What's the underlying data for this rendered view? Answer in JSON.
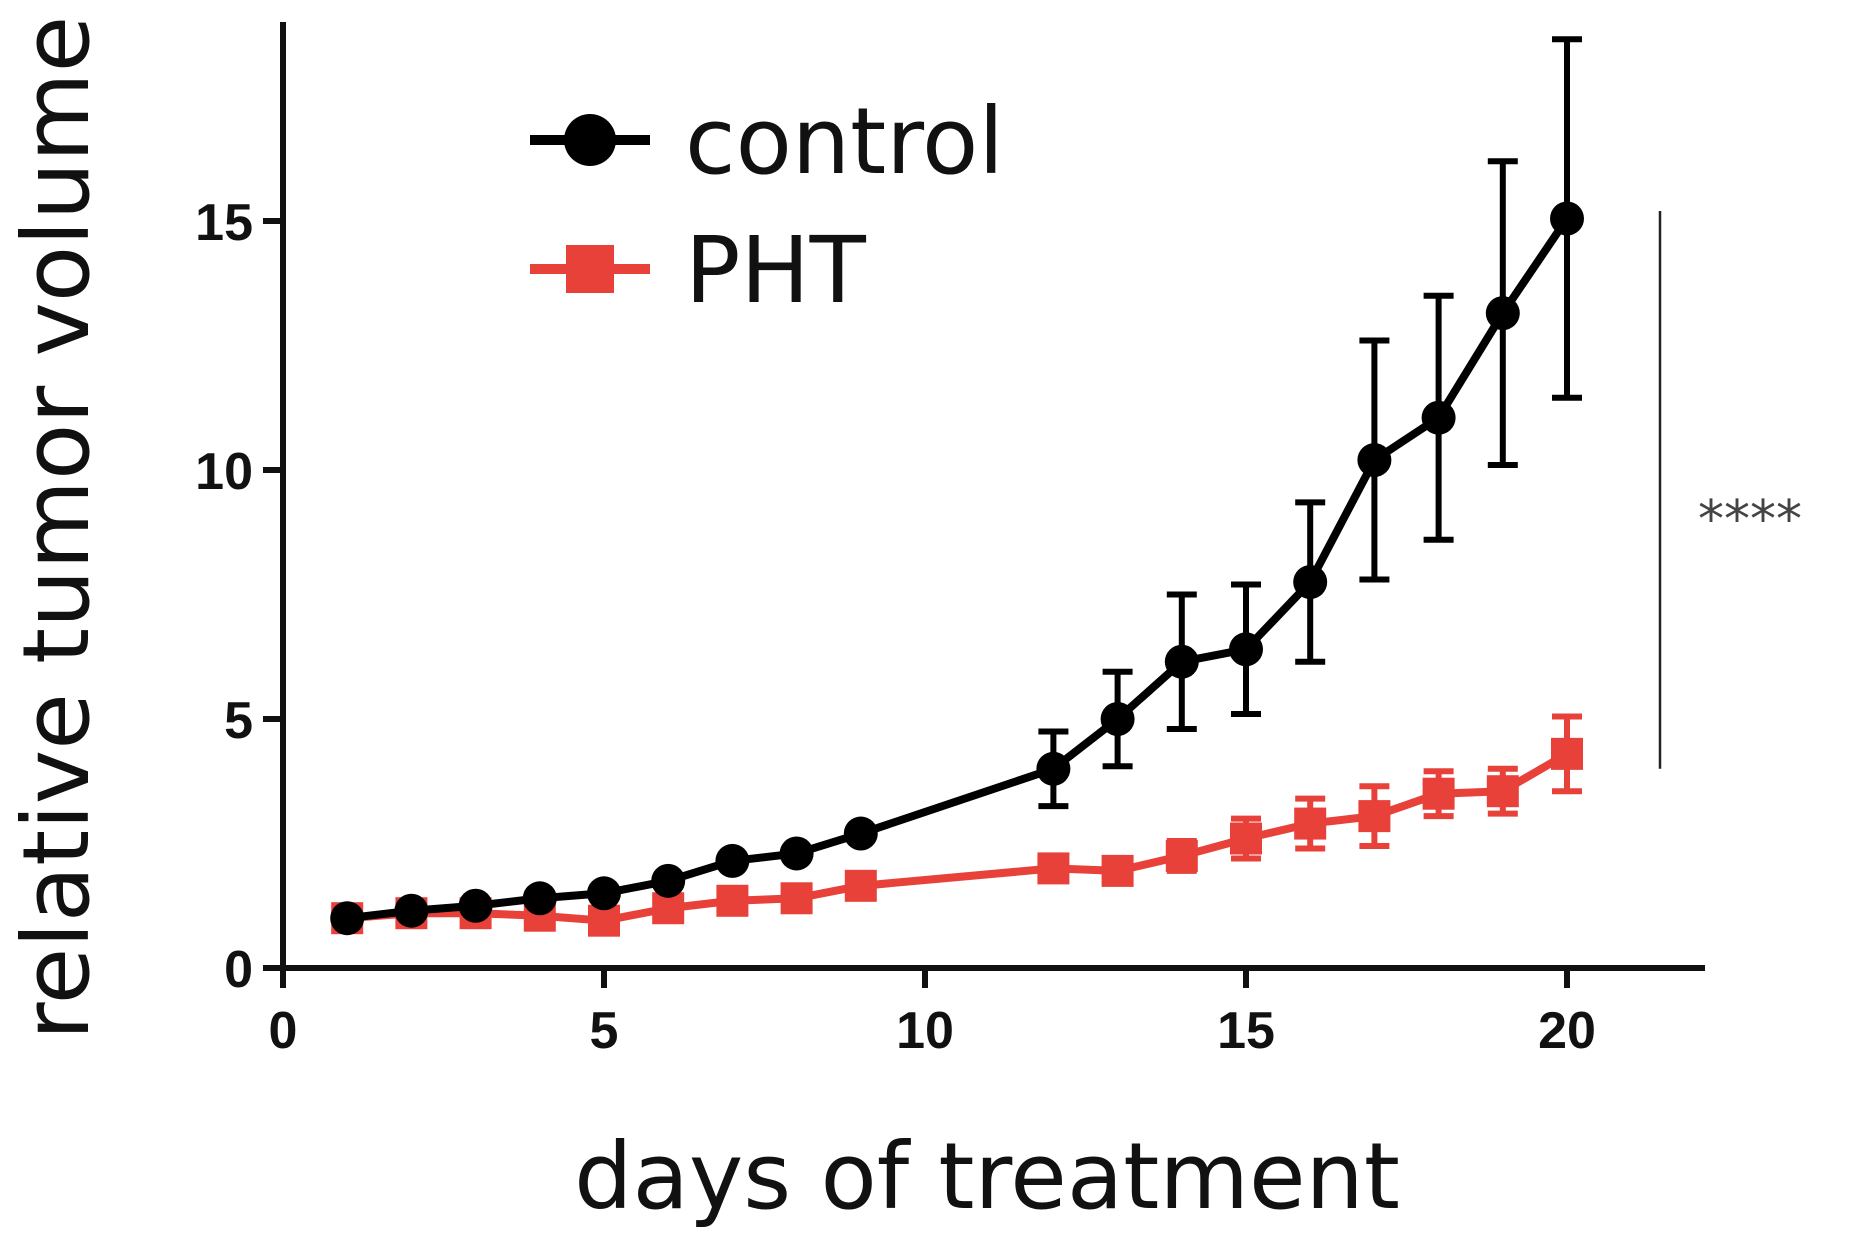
{
  "chart_data": {
    "type": "line",
    "title": "",
    "xlabel": "days of treatment",
    "ylabel": "relative tumor volume",
    "xlim": [
      0,
      22
    ],
    "ylim": [
      0,
      19
    ],
    "xticks": [
      0,
      5,
      10,
      15,
      20
    ],
    "yticks": [
      0,
      5,
      10,
      15
    ],
    "grid": false,
    "legend_position": "top-left",
    "series": [
      {
        "name": "control",
        "color": "#000000",
        "marker": "circle",
        "x": [
          1,
          2,
          3,
          4,
          5,
          6,
          7,
          8,
          9,
          12,
          13,
          14,
          15,
          16,
          17,
          18,
          19,
          20
        ],
        "y": [
          1.0,
          1.15,
          1.25,
          1.4,
          1.5,
          1.75,
          2.15,
          2.3,
          2.7,
          4.0,
          5.0,
          6.15,
          6.4,
          7.75,
          10.2,
          11.05,
          13.15,
          15.05
        ],
        "error": [
          0,
          0,
          0,
          0,
          0,
          0,
          0,
          0,
          0,
          0.75,
          0.95,
          1.35,
          1.3,
          1.6,
          2.4,
          2.45,
          3.05,
          3.6
        ]
      },
      {
        "name": "PHT",
        "color": "#e8413a",
        "marker": "square",
        "x": [
          1,
          2,
          3,
          4,
          5,
          6,
          7,
          8,
          9,
          12,
          13,
          14,
          15,
          16,
          17,
          18,
          19,
          20
        ],
        "y": [
          1.0,
          1.1,
          1.1,
          1.05,
          0.95,
          1.2,
          1.35,
          1.4,
          1.65,
          2.0,
          1.95,
          2.25,
          2.6,
          2.9,
          3.05,
          3.5,
          3.55,
          4.3
        ],
        "error": [
          0,
          0,
          0,
          0,
          0,
          0,
          0,
          0,
          0,
          0,
          0,
          0.3,
          0.4,
          0.5,
          0.6,
          0.45,
          0.45,
          0.75
        ]
      }
    ],
    "annotations": [
      {
        "text": "****",
        "type": "significance-bracket",
        "y_range": [
          4.0,
          15.2
        ]
      }
    ]
  }
}
